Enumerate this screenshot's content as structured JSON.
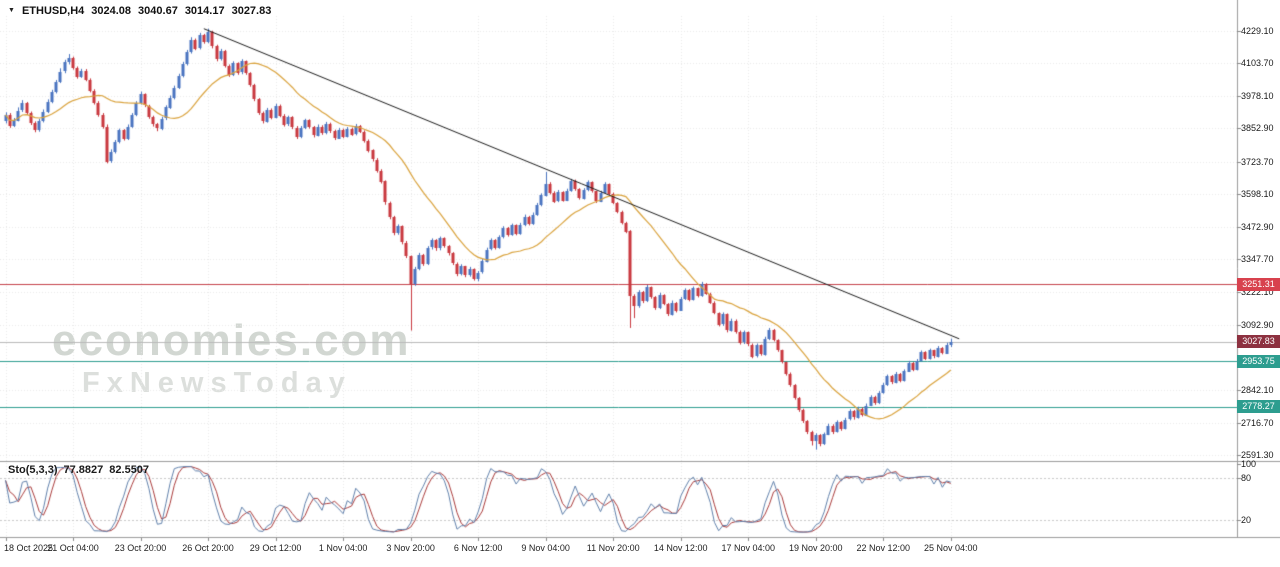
{
  "header": {
    "symbol": "ETHUSD,H4",
    "open": "3024.08",
    "high": "3040.67",
    "low": "3014.17",
    "close": "3027.83"
  },
  "icons": {
    "dropdown": "▼"
  },
  "watermark": {
    "line1": "economies.com",
    "line2": "FxNewsToday"
  },
  "indicator": {
    "name": "Sto(5,3,3)",
    "value_main": "77.8827",
    "value_signal": "82.5507"
  },
  "colors": {
    "bull": "#4a74c0",
    "bear": "#c8373e",
    "ma": "#d9a23c",
    "trendline": "#1b1b1b",
    "grid": "#e9e9e9",
    "separator": "#9b9b9b",
    "sto_main": "#6080ab",
    "sto_signal": "#a93a3a",
    "sto_level_line": "#c8c8c8",
    "axis_text": "#1a1a1a"
  },
  "chart_data": {
    "type": "candlestick",
    "symbol": "ETHUSD",
    "timeframe": "H4",
    "title": "ETHUSD,H4 3024.08 3040.67 3014.17 3027.83",
    "grid": true,
    "y_ticks": [
      "4229.10",
      "4103.70",
      "3978.10",
      "3852.90",
      "3723.70",
      "3598.10",
      "3472.90",
      "3347.70",
      "3222.10",
      "3092.90",
      "2842.10",
      "2716.70",
      "2591.30"
    ],
    "y_tick_values": [
      4229.1,
      4103.7,
      3978.1,
      3852.9,
      3723.7,
      3598.1,
      3472.9,
      3347.7,
      3222.1,
      3092.9,
      2842.1,
      2716.7,
      2591.3
    ],
    "price_axis": {
      "top": 4229.1,
      "bottom": 2591.3
    },
    "x_labels": [
      "18 Oct 2025",
      "21 Oct 04:00",
      "23 Oct 20:00",
      "26 Oct 20:00",
      "29 Oct 12:00",
      "1 Nov 04:00",
      "3 Nov 20:00",
      "6 Nov 12:00",
      "9 Nov 04:00",
      "11 Nov 20:00",
      "14 Nov 12:00",
      "17 Nov 04:00",
      "19 Nov 20:00",
      "22 Nov 12:00",
      "25 Nov 04:00"
    ],
    "x_label_step": 16,
    "ma_period": 21,
    "trendline": {
      "from_index": 47,
      "from_price": 4238,
      "to_index": 226,
      "to_price": 3040
    },
    "h_lines": [
      {
        "label": "3251.31",
        "price": 3251.31,
        "line_color": "#c4404a",
        "tag_color": "#d8414e"
      },
      {
        "label": "3027.83",
        "price": 3027.83,
        "line_color": "#b9b9b9",
        "tag_color": "#8d3140"
      },
      {
        "label": "2953.75",
        "price": 2953.75,
        "line_color": "#2d9d8f",
        "tag_color": "#2d9d8f"
      },
      {
        "label": "2778.27",
        "price": 2778.27,
        "line_color": "#2d9d8f",
        "tag_color": "#2d9d8f"
      }
    ],
    "stochastic": {
      "k": 5,
      "slowing": 3,
      "d": 3,
      "last_main": 77.8827,
      "last_signal": 82.5507
    },
    "sto_levels": [
      {
        "label": "100",
        "value": 100,
        "line": false
      },
      {
        "label": "80",
        "value": 80,
        "line": true
      },
      {
        "label": "20",
        "value": 20,
        "line": true
      }
    ],
    "candles": {
      "first_open": 3880,
      "close": [
        3905,
        3862,
        3884,
        3922,
        3950,
        3912,
        3874,
        3846,
        3882,
        3918,
        3956,
        3994,
        4032,
        4072,
        4108,
        4124,
        4086,
        4052,
        4075,
        4040,
        3998,
        3952,
        3906,
        3860,
        3726,
        3762,
        3800,
        3845,
        3812,
        3860,
        3905,
        3950,
        3984,
        3940,
        3896,
        3868,
        3852,
        3890,
        3934,
        3972,
        4010,
        4056,
        4102,
        4148,
        4195,
        4162,
        4214,
        4186,
        4226,
        4170,
        4120,
        4152,
        4095,
        4060,
        4105,
        4068,
        4112,
        4066,
        4020,
        3965,
        3912,
        3880,
        3925,
        3895,
        3940,
        3902,
        3868,
        3895,
        3856,
        3820,
        3855,
        3884,
        3858,
        3826,
        3860,
        3835,
        3870,
        3842,
        3815,
        3848,
        3822,
        3852,
        3830,
        3862,
        3840,
        3805,
        3768,
        3732,
        3690,
        3648,
        3565,
        3510,
        3448,
        3475,
        3412,
        3360,
        3252,
        3310,
        3365,
        3330,
        3392,
        3420,
        3388,
        3428,
        3398,
        3370,
        3330,
        3290,
        3320,
        3285,
        3310,
        3272,
        3296,
        3340,
        3385,
        3420,
        3390,
        3432,
        3468,
        3440,
        3478,
        3445,
        3480,
        3512,
        3484,
        3520,
        3558,
        3595,
        3640,
        3605,
        3572,
        3608,
        3575,
        3612,
        3650,
        3618,
        3582,
        3615,
        3645,
        3610,
        3572,
        3605,
        3638,
        3600,
        3565,
        3530,
        3488,
        3455,
        3205,
        3165,
        3220,
        3185,
        3240,
        3200,
        3158,
        3210,
        3175,
        3135,
        3180,
        3150,
        3195,
        3228,
        3190,
        3235,
        3205,
        3252,
        3215,
        3180,
        3140,
        3095,
        3135,
        3072,
        3110,
        3068,
        3025,
        3065,
        3018,
        2972,
        3015,
        2980,
        3040,
        3075,
        3035,
        2995,
        2950,
        2905,
        2862,
        2810,
        2765,
        2722,
        2680,
        2645,
        2668,
        2635,
        2672,
        2705,
        2680,
        2718,
        2692,
        2728,
        2760,
        2735,
        2770,
        2745,
        2782,
        2815,
        2790,
        2830,
        2862,
        2895,
        2870,
        2905,
        2878,
        2915,
        2948,
        2920,
        2955,
        2988,
        2962,
        2995,
        2970,
        3005,
        2985,
        3018,
        3028
      ],
      "high": [
        3915,
        3912,
        3893,
        3934,
        3962,
        3955,
        3918,
        3880,
        3890,
        3926,
        3965,
        4002,
        4040,
        4085,
        4118,
        4140,
        4130,
        4092,
        4083,
        4082,
        4046,
        4004,
        3958,
        3912,
        3868,
        3772,
        3808,
        3852,
        3850,
        3868,
        3912,
        3958,
        3995,
        3988,
        3944,
        3902,
        3874,
        3898,
        3942,
        3980,
        4018,
        4064,
        4110,
        4156,
        4205,
        4200,
        4222,
        4218,
        4238,
        4230,
        4176,
        4160,
        4156,
        4100,
        4112,
        4108,
        4120,
        4115,
        4070,
        4025,
        3970,
        3918,
        3932,
        3930,
        3948,
        3945,
        3908,
        3902,
        3900,
        3862,
        3862,
        3890,
        3888,
        3862,
        3868,
        3865,
        3878,
        3875,
        3848,
        3855,
        3852,
        3858,
        3856,
        3870,
        3866,
        3845,
        3810,
        3772,
        3738,
        3695,
        3652,
        3570,
        3515,
        3482,
        3478,
        3418,
        3362,
        3318,
        3372,
        3368,
        3398,
        3428,
        3425,
        3435,
        3432,
        3402,
        3375,
        3335,
        3328,
        3322,
        3318,
        3312,
        3302,
        3348,
        3392,
        3428,
        3425,
        3440,
        3475,
        3472,
        3485,
        3482,
        3488,
        3520,
        3515,
        3528,
        3565,
        3602,
        3685,
        3645,
        3610,
        3615,
        3610,
        3620,
        3658,
        3655,
        3622,
        3622,
        3652,
        3648,
        3612,
        3612,
        3645,
        3640,
        3605,
        3568,
        3535,
        3492,
        3460,
        3212,
        3228,
        3225,
        3248,
        3242,
        3205,
        3218,
        3212,
        3178,
        3188,
        3182,
        3202,
        3235,
        3232,
        3242,
        3238,
        3260,
        3255,
        3218,
        3185,
        3142,
        3142,
        3138,
        3118,
        3115,
        3072,
        3072,
        3068,
        3022,
        3022,
        3018,
        3048,
        3082,
        3078,
        3038,
        2998,
        2952,
        2910,
        2865,
        2815,
        2770,
        2726,
        2685,
        2675,
        2672,
        2678,
        2712,
        2710,
        2725,
        2722,
        2735,
        2768,
        2765,
        2778,
        2775,
        2790,
        2822,
        2820,
        2838,
        2870,
        2902,
        2900,
        2912,
        2908,
        2922,
        2955,
        2950,
        2962,
        2995,
        2992,
        3002,
        2998,
        3012,
        3008,
        3025,
        3041
      ],
      "low": [
        3872,
        3855,
        3858,
        3880,
        3916,
        3905,
        3866,
        3838,
        3840,
        3876,
        3912,
        3950,
        3988,
        4028,
        4066,
        4100,
        4080,
        4045,
        4048,
        4035,
        3992,
        3945,
        3898,
        3852,
        3718,
        3720,
        3756,
        3795,
        3806,
        3808,
        3855,
        3900,
        3945,
        3935,
        3890,
        3860,
        3842,
        3846,
        3885,
        3928,
        3965,
        4005,
        4050,
        4096,
        4142,
        4155,
        4158,
        4180,
        4182,
        4162,
        4112,
        4115,
        4088,
        4052,
        4055,
        4060,
        4062,
        4060,
        4014,
        3958,
        3905,
        3872,
        3875,
        3888,
        3892,
        3896,
        3860,
        3862,
        3850,
        3812,
        3815,
        3850,
        3852,
        3818,
        3822,
        3828,
        3830,
        3835,
        3808,
        3812,
        3815,
        3818,
        3824,
        3826,
        3835,
        3798,
        3760,
        3725,
        3682,
        3640,
        3558,
        3502,
        3440,
        3442,
        3405,
        3352,
        3072,
        3245,
        3305,
        3322,
        3325,
        3385,
        3380,
        3382,
        3392,
        3362,
        3325,
        3282,
        3285,
        3278,
        3280,
        3265,
        3262,
        3292,
        3335,
        3382,
        3385,
        3388,
        3428,
        3435,
        3438,
        3440,
        3442,
        3475,
        3478,
        3480,
        3515,
        3552,
        3590,
        3598,
        3565,
        3568,
        3570,
        3572,
        3608,
        3612,
        3578,
        3578,
        3610,
        3605,
        3565,
        3568,
        3600,
        3595,
        3560,
        3525,
        3482,
        3448,
        3082,
        3120,
        3160,
        3178,
        3182,
        3195,
        3152,
        3155,
        3170,
        3128,
        3130,
        3142,
        3148,
        3190,
        3185,
        3188,
        3200,
        3202,
        3210,
        3175,
        3135,
        3088,
        3090,
        3065,
        3068,
        3060,
        3018,
        3020,
        3012,
        2965,
        2968,
        2975,
        2975,
        3035,
        3030,
        2990,
        2945,
        2898,
        2855,
        2805,
        2758,
        2715,
        2672,
        2628,
        2612,
        2625,
        2630,
        2668,
        2672,
        2678,
        2685,
        2690,
        2725,
        2728,
        2732,
        2740,
        2742,
        2780,
        2785,
        2788,
        2828,
        2858,
        2865,
        2868,
        2872,
        2875,
        2912,
        2915,
        2918,
        2952,
        2958,
        2960,
        2965,
        2968,
        2980,
        2982,
        3008
      ]
    }
  }
}
